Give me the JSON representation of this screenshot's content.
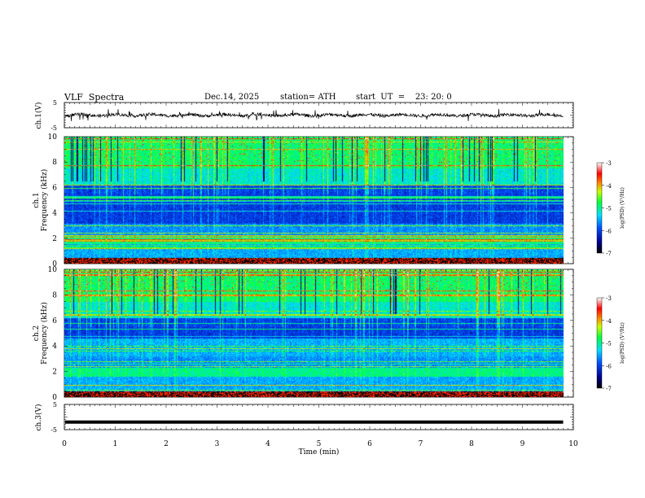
{
  "header": {
    "title": "VLF  Spectra",
    "date": "Dec.14, 2025",
    "station": "station= ATH",
    "start": "start  UT  =    23: 20: 0"
  },
  "chart_data": [
    {
      "type": "line",
      "panel": "ch1-waveform",
      "ylabel": "ch.1(V)",
      "ylim": [
        -5,
        5
      ],
      "yticks": [
        5,
        -5
      ],
      "xlim": [
        0,
        10
      ],
      "description_values": "noisy waveform around 0 V with spikes up to about ±2 V"
    },
    {
      "type": "heatmap",
      "panel": "ch1-spectrogram",
      "ylabel": "ch.1\nFrequency (kHz)",
      "ylabel_line1": "ch.1",
      "ylabel_line2": "Frequency (kHz)",
      "ylim": [
        0,
        10
      ],
      "yticks": [
        "0",
        "2",
        "4",
        "6",
        "8",
        "10"
      ],
      "xlim": [
        0,
        10
      ],
      "data_end_min": 9.8,
      "colorbar": {
        "label": "log(PSD) (V²/Hz)",
        "range": [
          -7,
          -3
        ],
        "ticks": [
          "-3",
          "-4",
          "-5",
          "-6",
          "-7"
        ]
      }
    },
    {
      "type": "heatmap",
      "panel": "ch2-spectrogram",
      "ylabel_line1": "ch.2",
      "ylabel_line2": "Frequency (kHz)",
      "ylim": [
        0,
        10
      ],
      "yticks": [
        "0",
        "2",
        "4",
        "6",
        "8",
        "10"
      ],
      "xlim": [
        0,
        10
      ],
      "data_end_min": 9.8,
      "colorbar": {
        "label": "log(PSD) (V²/Hz)",
        "range": [
          -7,
          -3
        ],
        "ticks": [
          "-3",
          "-4",
          "-5",
          "-6",
          "-7"
        ]
      }
    },
    {
      "type": "line",
      "panel": "ch3-waveform",
      "ylabel": "ch.3(V)",
      "ylim": [
        -5,
        5
      ],
      "yticks": [
        "5",
        "-5"
      ],
      "xlim": [
        0,
        10
      ],
      "level_v": -2
    }
  ],
  "xaxis": {
    "label": "Time  (min)",
    "ticks": [
      "0",
      "1",
      "2",
      "3",
      "4",
      "5",
      "6",
      "7",
      "8",
      "9",
      "10"
    ]
  },
  "colors": {
    "spectrum": [
      "#000000",
      "#000080",
      "#0000ff",
      "#00ffff",
      "#00ff00",
      "#ffff00",
      "#ff0000",
      "#ffffff"
    ]
  }
}
